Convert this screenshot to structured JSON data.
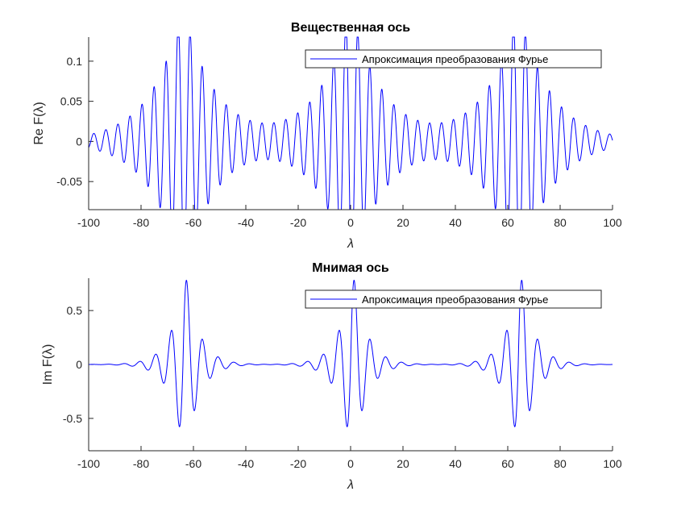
{
  "chart_data": [
    {
      "type": "line",
      "title": "Вещественная ось",
      "xlabel": "λ",
      "ylabel": "Re F(λ)",
      "xlim": [
        -100,
        100
      ],
      "ylim": [
        -0.085,
        0.13
      ],
      "xticks": [
        -100,
        -80,
        -60,
        -40,
        -20,
        0,
        20,
        40,
        60,
        80,
        100
      ],
      "xtick_labels": [
        "-100",
        "-80",
        "-60",
        "-40",
        "-20",
        "0",
        "20",
        "40",
        "60",
        "80",
        "100"
      ],
      "yticks": [
        -0.05,
        0,
        0.05,
        0.1
      ],
      "ytick_labels": [
        "-0.05",
        "0",
        "0.05",
        "0.1"
      ],
      "grid": false,
      "legend": {
        "position": "top-right",
        "entries": [
          "Апроксимация преобразования Фурье"
        ]
      },
      "series": [
        {
          "name": "Апроксимация преобразования Фурье",
          "color": "#0000ff",
          "kind": "real",
          "packet_centers": [
            -64,
            0,
            64
          ],
          "peak_amplitude": 0.17,
          "carrier_period": 4.6,
          "envelope_decay": 12
        }
      ]
    },
    {
      "type": "line",
      "title": "Мнимая ось",
      "xlabel": "λ",
      "ylabel": "Im F(λ)",
      "xlim": [
        -100,
        100
      ],
      "ylim": [
        -0.8,
        0.8
      ],
      "xticks": [
        -100,
        -80,
        -60,
        -40,
        -20,
        0,
        20,
        40,
        60,
        80,
        100
      ],
      "xtick_labels": [
        "-100",
        "-80",
        "-60",
        "-40",
        "-20",
        "0",
        "20",
        "40",
        "60",
        "80",
        "100"
      ],
      "yticks": [
        -0.5,
        0,
        0.5
      ],
      "ytick_labels": [
        "-0.5",
        "0",
        "0.5"
      ],
      "grid": false,
      "legend": {
        "position": "top-right",
        "entries": [
          "Апроксимация преобразования Фурье"
        ]
      },
      "series": [
        {
          "name": "Апроксимация преобразования Фурье",
          "color": "#0000ff",
          "kind": "imag",
          "packet_centers": [
            -64,
            0,
            64
          ],
          "peak_amplitude": 0.9,
          "carrier_period": 6.0,
          "envelope_decay": 5
        }
      ]
    }
  ]
}
